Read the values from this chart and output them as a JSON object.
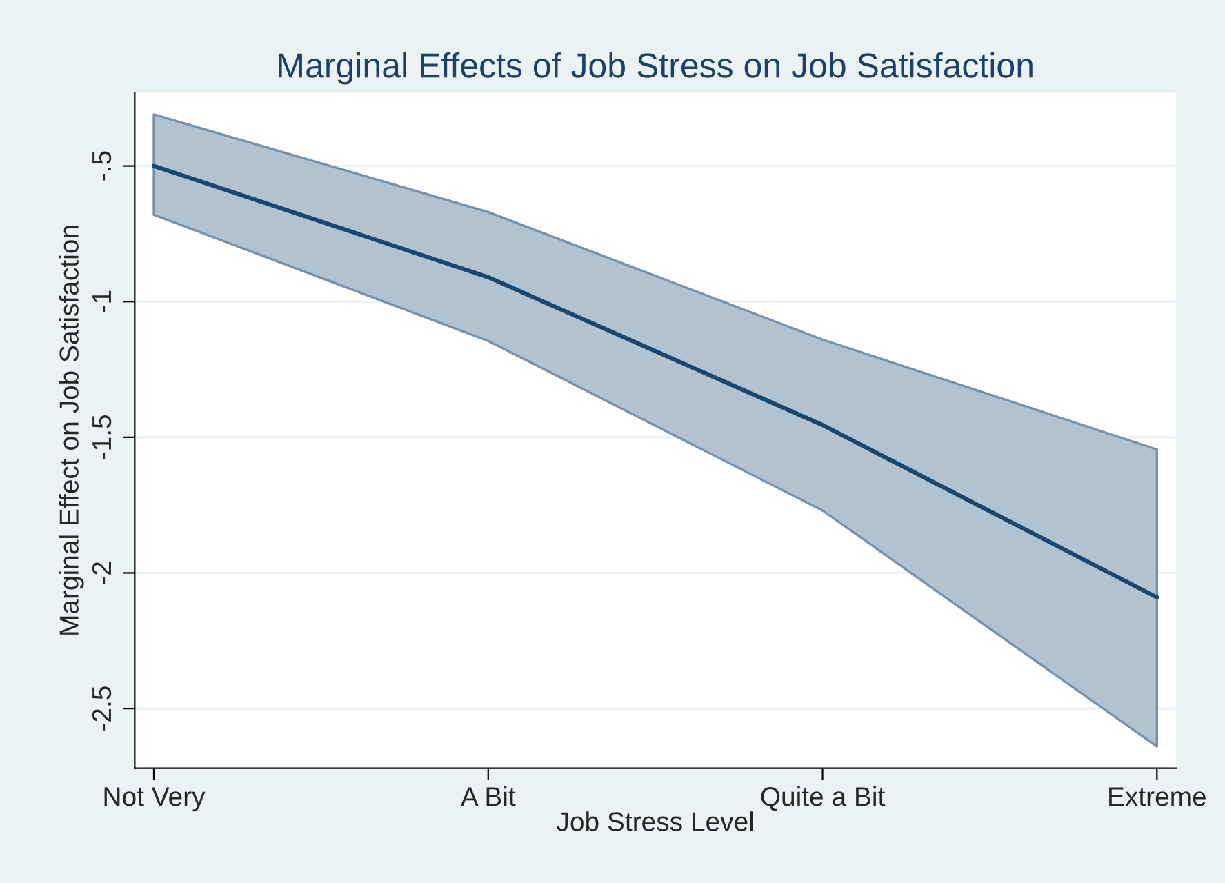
{
  "chart_data": {
    "type": "line",
    "title": "Marginal Effects of Job Stress on Job Satisfaction",
    "xlabel": "Job Stress Level",
    "ylabel": "Marginal Effect on Job Satisfaction",
    "categories": [
      "Not Very",
      "A Bit",
      "Quite a Bit",
      "Extreme"
    ],
    "series": [
      {
        "color": "#1a476f",
        "values": [
          -0.5,
          -0.91,
          -1.455,
          -2.09
        ],
        "lower": [
          -0.68,
          -1.145,
          -1.77,
          -2.64
        ],
        "upper": [
          -0.31,
          -0.67,
          -1.14,
          -1.545
        ]
      }
    ],
    "ylim": [
      -2.72,
      -0.23
    ],
    "yticks": [
      {
        "value": -2.5,
        "label": "-2.5"
      },
      {
        "value": -2,
        "label": "-2"
      },
      {
        "value": -1.5,
        "label": "-1.5"
      },
      {
        "value": -1,
        "label": "-1"
      },
      {
        "value": -0.5,
        "label": "-.5"
      }
    ],
    "grid": "y",
    "line_style": "solid"
  }
}
